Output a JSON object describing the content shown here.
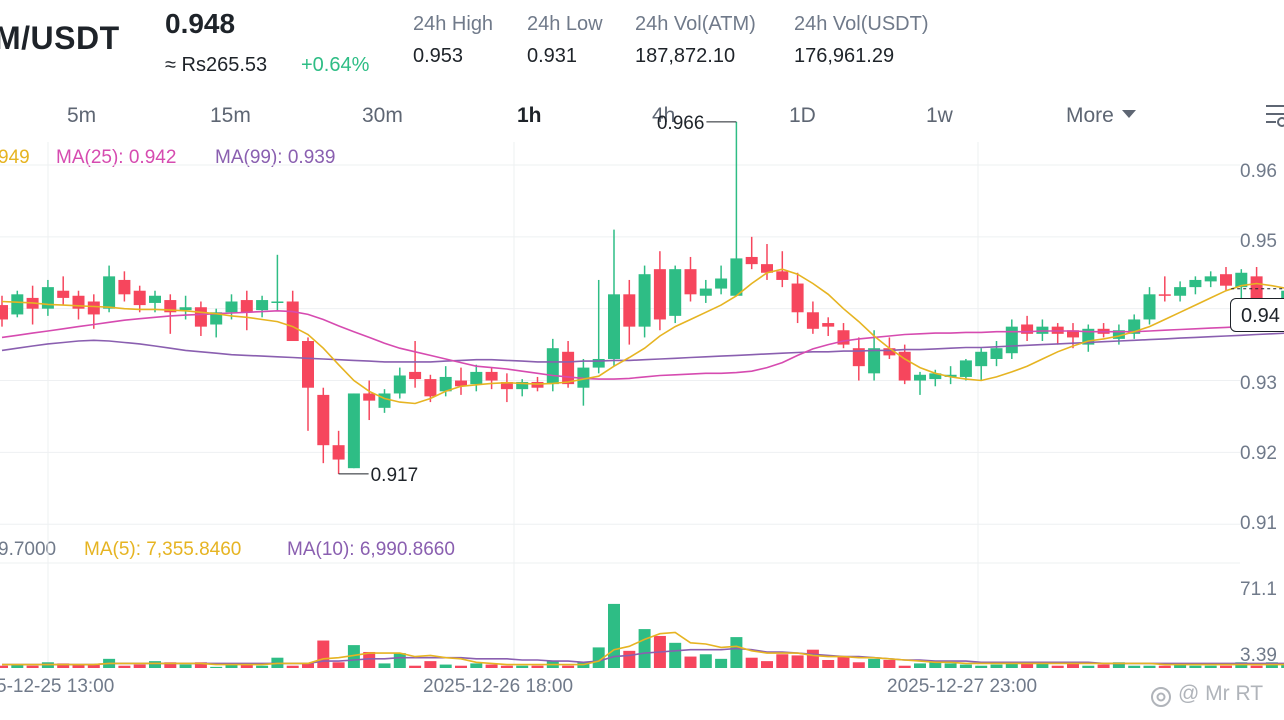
{
  "header": {
    "pair": "M/USDT",
    "last_price": "0.948",
    "fiat_price": "≈ Rs265.53",
    "change_pct": "+0.64%",
    "stats": [
      {
        "label": "24h High",
        "value": "0.953"
      },
      {
        "label": "24h Low",
        "value": "0.931"
      },
      {
        "label": "24h Vol(ATM)",
        "value": "187,872.10"
      },
      {
        "label": "24h Vol(USDT)",
        "value": "176,961.29"
      }
    ]
  },
  "timeframes": [
    "5m",
    "15m",
    "30m",
    "1h",
    "4h",
    "1D",
    "1w"
  ],
  "active_timeframe": "1h",
  "more_label": "More",
  "indicators": {
    "ma7_text": "949",
    "ma25_text": "MA(25): 0.942",
    "ma99_text": "MA(99): 0.939",
    "vol_text": "9.7000",
    "vol_ma5_text": "MA(5): 7,355.8460",
    "vol_ma10_text": "MA(10): 6,990.8660"
  },
  "current_price_tag": "0.94",
  "watermark": "@ Mr RT",
  "colors": {
    "up": "#2ebd85",
    "down": "#f6465d",
    "ma_short": "#e6b422",
    "ma_mid": "#d64bb0",
    "ma_long": "#8a5fb0"
  },
  "chart_data": {
    "type": "candlestick",
    "y_tick_labels": [
      "0.96",
      "0.95",
      "0.94",
      "0.93",
      "0.92",
      "0.91"
    ],
    "y_ticks": [
      0.96,
      0.95,
      0.94,
      0.93,
      0.92,
      0.91
    ],
    "ylim": [
      0.9085,
      0.9632
    ],
    "high_annotation": "0.966",
    "low_annotation": "0.917",
    "x_tick_labels": [
      "5-12-25 13:00",
      "2025-12-26 18:00",
      "2025-12-27 23:00"
    ],
    "volume_tick_labels": [
      "71.1",
      "3.39"
    ],
    "volume_ticks": [
      71.1,
      3.39
    ],
    "volume_ylim": [
      0,
      90
    ],
    "grid": true,
    "candles": [
      {
        "o": 0.9405,
        "h": 0.9418,
        "l": 0.9375,
        "c": 0.9385
      },
      {
        "o": 0.9392,
        "h": 0.9425,
        "l": 0.9388,
        "c": 0.942
      },
      {
        "o": 0.9415,
        "h": 0.9432,
        "l": 0.9378,
        "c": 0.94
      },
      {
        "o": 0.94,
        "h": 0.944,
        "l": 0.939,
        "c": 0.943
      },
      {
        "o": 0.9425,
        "h": 0.9445,
        "l": 0.9405,
        "c": 0.9415
      },
      {
        "o": 0.9418,
        "h": 0.9425,
        "l": 0.9385,
        "c": 0.94
      },
      {
        "o": 0.941,
        "h": 0.942,
        "l": 0.9372,
        "c": 0.9392
      },
      {
        "o": 0.94,
        "h": 0.946,
        "l": 0.9395,
        "c": 0.9445
      },
      {
        "o": 0.944,
        "h": 0.9452,
        "l": 0.941,
        "c": 0.942
      },
      {
        "o": 0.9425,
        "h": 0.9432,
        "l": 0.9395,
        "c": 0.9405
      },
      {
        "o": 0.9408,
        "h": 0.9425,
        "l": 0.9395,
        "c": 0.9418
      },
      {
        "o": 0.9412,
        "h": 0.942,
        "l": 0.9365,
        "c": 0.9395
      },
      {
        "o": 0.9398,
        "h": 0.9418,
        "l": 0.9385,
        "c": 0.9402
      },
      {
        "o": 0.9402,
        "h": 0.941,
        "l": 0.9362,
        "c": 0.9375
      },
      {
        "o": 0.9378,
        "h": 0.94,
        "l": 0.936,
        "c": 0.9395
      },
      {
        "o": 0.9395,
        "h": 0.942,
        "l": 0.9385,
        "c": 0.941
      },
      {
        "o": 0.9412,
        "h": 0.9425,
        "l": 0.937,
        "c": 0.9395
      },
      {
        "o": 0.9398,
        "h": 0.9418,
        "l": 0.9388,
        "c": 0.9412
      },
      {
        "o": 0.9408,
        "h": 0.9475,
        "l": 0.9398,
        "c": 0.941
      },
      {
        "o": 0.941,
        "h": 0.9425,
        "l": 0.9355,
        "c": 0.9355
      },
      {
        "o": 0.9355,
        "h": 0.936,
        "l": 0.923,
        "c": 0.929
      },
      {
        "o": 0.928,
        "h": 0.929,
        "l": 0.9185,
        "c": 0.921
      },
      {
        "o": 0.921,
        "h": 0.923,
        "l": 0.917,
        "c": 0.919
      },
      {
        "o": 0.9178,
        "h": 0.9282,
        "l": 0.9178,
        "c": 0.9282
      },
      {
        "o": 0.9282,
        "h": 0.93,
        "l": 0.9245,
        "c": 0.9272
      },
      {
        "o": 0.9262,
        "h": 0.9288,
        "l": 0.9255,
        "c": 0.9282
      },
      {
        "o": 0.9282,
        "h": 0.9318,
        "l": 0.9275,
        "c": 0.9307
      },
      {
        "o": 0.9312,
        "h": 0.9355,
        "l": 0.929,
        "c": 0.9302
      },
      {
        "o": 0.9302,
        "h": 0.9308,
        "l": 0.927,
        "c": 0.9278
      },
      {
        "o": 0.9285,
        "h": 0.932,
        "l": 0.9278,
        "c": 0.9305
      },
      {
        "o": 0.93,
        "h": 0.9318,
        "l": 0.928,
        "c": 0.9292
      },
      {
        "o": 0.9295,
        "h": 0.9322,
        "l": 0.9285,
        "c": 0.9312
      },
      {
        "o": 0.9312,
        "h": 0.9318,
        "l": 0.9288,
        "c": 0.93
      },
      {
        "o": 0.9298,
        "h": 0.931,
        "l": 0.927,
        "c": 0.9288
      },
      {
        "o": 0.9288,
        "h": 0.9302,
        "l": 0.9278,
        "c": 0.9298
      },
      {
        "o": 0.9298,
        "h": 0.9305,
        "l": 0.9285,
        "c": 0.929
      },
      {
        "o": 0.9295,
        "h": 0.9358,
        "l": 0.9285,
        "c": 0.9345
      },
      {
        "o": 0.934,
        "h": 0.9355,
        "l": 0.929,
        "c": 0.9295
      },
      {
        "o": 0.929,
        "h": 0.933,
        "l": 0.9265,
        "c": 0.9318
      },
      {
        "o": 0.9318,
        "h": 0.944,
        "l": 0.931,
        "c": 0.933
      },
      {
        "o": 0.933,
        "h": 0.951,
        "l": 0.932,
        "c": 0.942
      },
      {
        "o": 0.942,
        "h": 0.944,
        "l": 0.935,
        "c": 0.9375
      },
      {
        "o": 0.9375,
        "h": 0.946,
        "l": 0.936,
        "c": 0.9448
      },
      {
        "o": 0.9455,
        "h": 0.948,
        "l": 0.937,
        "c": 0.9385
      },
      {
        "o": 0.939,
        "h": 0.946,
        "l": 0.938,
        "c": 0.9455
      },
      {
        "o": 0.9455,
        "h": 0.9472,
        "l": 0.941,
        "c": 0.942
      },
      {
        "o": 0.9418,
        "h": 0.944,
        "l": 0.9408,
        "c": 0.9428
      },
      {
        "o": 0.9428,
        "h": 0.946,
        "l": 0.942,
        "c": 0.9442
      },
      {
        "o": 0.9418,
        "h": 0.966,
        "l": 0.9418,
        "c": 0.947
      },
      {
        "o": 0.9472,
        "h": 0.95,
        "l": 0.9455,
        "c": 0.9462
      },
      {
        "o": 0.9462,
        "h": 0.949,
        "l": 0.944,
        "c": 0.945
      },
      {
        "o": 0.9452,
        "h": 0.948,
        "l": 0.943,
        "c": 0.944
      },
      {
        "o": 0.9435,
        "h": 0.945,
        "l": 0.938,
        "c": 0.9395
      },
      {
        "o": 0.9395,
        "h": 0.941,
        "l": 0.9365,
        "c": 0.9372
      },
      {
        "o": 0.938,
        "h": 0.9388,
        "l": 0.9362,
        "c": 0.9375
      },
      {
        "o": 0.937,
        "h": 0.938,
        "l": 0.9345,
        "c": 0.935
      },
      {
        "o": 0.9345,
        "h": 0.936,
        "l": 0.93,
        "c": 0.932
      },
      {
        "o": 0.931,
        "h": 0.937,
        "l": 0.93,
        "c": 0.9345
      },
      {
        "o": 0.9345,
        "h": 0.936,
        "l": 0.933,
        "c": 0.9335
      },
      {
        "o": 0.934,
        "h": 0.935,
        "l": 0.9295,
        "c": 0.93
      },
      {
        "o": 0.93,
        "h": 0.9312,
        "l": 0.928,
        "c": 0.9308
      },
      {
        "o": 0.9302,
        "h": 0.9315,
        "l": 0.9292,
        "c": 0.931
      },
      {
        "o": 0.9305,
        "h": 0.932,
        "l": 0.9295,
        "c": 0.9308
      },
      {
        "o": 0.9305,
        "h": 0.933,
        "l": 0.93,
        "c": 0.9328
      },
      {
        "o": 0.932,
        "h": 0.9345,
        "l": 0.93,
        "c": 0.934
      },
      {
        "o": 0.933,
        "h": 0.9355,
        "l": 0.932,
        "c": 0.9345
      },
      {
        "o": 0.9338,
        "h": 0.9385,
        "l": 0.933,
        "c": 0.9375
      },
      {
        "o": 0.9378,
        "h": 0.939,
        "l": 0.9355,
        "c": 0.9365
      },
      {
        "o": 0.9365,
        "h": 0.9385,
        "l": 0.9355,
        "c": 0.9375
      },
      {
        "o": 0.9375,
        "h": 0.938,
        "l": 0.935,
        "c": 0.9365
      },
      {
        "o": 0.937,
        "h": 0.938,
        "l": 0.9345,
        "c": 0.936
      },
      {
        "o": 0.935,
        "h": 0.9378,
        "l": 0.934,
        "c": 0.9372
      },
      {
        "o": 0.9372,
        "h": 0.938,
        "l": 0.936,
        "c": 0.9365
      },
      {
        "o": 0.9358,
        "h": 0.9378,
        "l": 0.935,
        "c": 0.937
      },
      {
        "o": 0.9365,
        "h": 0.9392,
        "l": 0.9358,
        "c": 0.9385
      },
      {
        "o": 0.9385,
        "h": 0.943,
        "l": 0.9378,
        "c": 0.942
      },
      {
        "o": 0.942,
        "h": 0.9445,
        "l": 0.941,
        "c": 0.9418
      },
      {
        "o": 0.9418,
        "h": 0.9438,
        "l": 0.941,
        "c": 0.943
      },
      {
        "o": 0.943,
        "h": 0.9445,
        "l": 0.942,
        "c": 0.944
      },
      {
        "o": 0.9438,
        "h": 0.9452,
        "l": 0.943,
        "c": 0.9445
      },
      {
        "o": 0.9448,
        "h": 0.9458,
        "l": 0.9425,
        "c": 0.9432
      },
      {
        "o": 0.943,
        "h": 0.9455,
        "l": 0.94,
        "c": 0.945
      },
      {
        "o": 0.9445,
        "h": 0.9458,
        "l": 0.9395,
        "c": 0.94
      },
      {
        "o": 0.9402,
        "h": 0.9412,
        "l": 0.9395,
        "c": 0.9408
      },
      {
        "o": 0.941,
        "h": 0.943,
        "l": 0.94,
        "c": 0.9425
      }
    ],
    "ma_short": [
      0.941,
      0.9409,
      0.9408,
      0.9406,
      0.9405,
      0.9404,
      0.9403,
      0.9402,
      0.94,
      0.9399,
      0.9399,
      0.9398,
      0.9397,
      0.9395,
      0.9393,
      0.939,
      0.9388,
      0.9385,
      0.9382,
      0.9375,
      0.9364,
      0.9345,
      0.9322,
      0.93,
      0.9285,
      0.9275,
      0.927,
      0.9268,
      0.9275,
      0.9285,
      0.9292,
      0.9294,
      0.9296,
      0.9297,
      0.9296,
      0.9295,
      0.9296,
      0.9298,
      0.9302,
      0.9306,
      0.932,
      0.9332,
      0.9345,
      0.9362,
      0.9375,
      0.9385,
      0.9395,
      0.9405,
      0.9418,
      0.9435,
      0.945,
      0.9455,
      0.9448,
      0.9435,
      0.942,
      0.94,
      0.9382,
      0.9362,
      0.9345,
      0.933,
      0.9318,
      0.931,
      0.9305,
      0.9302,
      0.93,
      0.9305,
      0.9312,
      0.932,
      0.933,
      0.934,
      0.9348,
      0.9355,
      0.9358,
      0.9362,
      0.9368,
      0.9375,
      0.9385,
      0.9395,
      0.9405,
      0.9415,
      0.9425,
      0.9432,
      0.9435,
      0.9432,
      0.9428,
      0.9427
    ],
    "ma_mid": [
      0.936,
      0.9363,
      0.9366,
      0.9369,
      0.9372,
      0.9375,
      0.9378,
      0.9381,
      0.9384,
      0.9386,
      0.9388,
      0.939,
      0.9391,
      0.9392,
      0.9393,
      0.9394,
      0.9395,
      0.9396,
      0.9397,
      0.9396,
      0.9392,
      0.9385,
      0.9376,
      0.9368,
      0.936,
      0.9352,
      0.9345,
      0.934,
      0.9335,
      0.933,
      0.9325,
      0.932,
      0.9318,
      0.9316,
      0.9313,
      0.931,
      0.9307,
      0.9305,
      0.9303,
      0.9302,
      0.9302,
      0.9303,
      0.9305,
      0.9307,
      0.9308,
      0.9309,
      0.931,
      0.931,
      0.9311,
      0.9313,
      0.9318,
      0.9325,
      0.9335,
      0.9344,
      0.935,
      0.9355,
      0.9358,
      0.936,
      0.9362,
      0.9364,
      0.9365,
      0.9366,
      0.9366,
      0.9367,
      0.9367,
      0.9368,
      0.9368,
      0.9368,
      0.9369,
      0.9369,
      0.9369,
      0.9368,
      0.9368,
      0.9368,
      0.9368,
      0.9369,
      0.937,
      0.9371,
      0.9372,
      0.9373,
      0.9374,
      0.9375,
      0.9376,
      0.9378,
      0.938,
      0.9383
    ],
    "ma_long": [
      0.9342,
      0.9345,
      0.9348,
      0.9351,
      0.9353,
      0.9355,
      0.9356,
      0.9355,
      0.9353,
      0.9351,
      0.9348,
      0.9345,
      0.9342,
      0.934,
      0.9338,
      0.9336,
      0.9335,
      0.9334,
      0.9333,
      0.9332,
      0.9331,
      0.933,
      0.9329,
      0.9328,
      0.9327,
      0.9326,
      0.9326,
      0.9326,
      0.9326,
      0.9327,
      0.9328,
      0.9329,
      0.9329,
      0.9328,
      0.9327,
      0.9326,
      0.9326,
      0.9326,
      0.9327,
      0.9327,
      0.9328,
      0.9328,
      0.9329,
      0.933,
      0.9331,
      0.9332,
      0.9333,
      0.9334,
      0.9335,
      0.9336,
      0.9337,
      0.9338,
      0.9339,
      0.934,
      0.934,
      0.9341,
      0.9341,
      0.9342,
      0.9342,
      0.9343,
      0.9343,
      0.9344,
      0.9345,
      0.9346,
      0.9346,
      0.9347,
      0.9348,
      0.9349,
      0.935,
      0.9351,
      0.9352,
      0.9353,
      0.9354,
      0.9355,
      0.9356,
      0.9357,
      0.9358,
      0.9359,
      0.936,
      0.9361,
      0.9362,
      0.9363,
      0.9364,
      0.9365,
      0.9366,
      0.9368
    ],
    "volumes": [
      2,
      3,
      2,
      5,
      4,
      3,
      3,
      8,
      2,
      3,
      6,
      5,
      3,
      5,
      1,
      3,
      4,
      2,
      9,
      2,
      4,
      24,
      5,
      20,
      14,
      4,
      13,
      2,
      6,
      3,
      2,
      4,
      3,
      2,
      2,
      2,
      6,
      2,
      5,
      18,
      56,
      15,
      34,
      28,
      22,
      10,
      12,
      8,
      27,
      9,
      6,
      12,
      11,
      16,
      7,
      10,
      5,
      8,
      7,
      2,
      4,
      5,
      4,
      3,
      2,
      3,
      5,
      4,
      4,
      2,
      5,
      2,
      3,
      5,
      2,
      2,
      2,
      4,
      2,
      2,
      2,
      5,
      2,
      5,
      3,
      3
    ],
    "vol_ma_short": [
      3,
      3,
      3,
      3,
      3,
      3,
      3,
      4,
      4,
      4,
      4,
      4,
      4,
      4,
      3,
      3,
      3,
      3,
      4,
      4,
      4,
      8,
      9,
      11,
      13,
      13,
      13,
      10,
      11,
      9,
      8,
      5,
      4,
      3,
      3,
      3,
      3,
      3,
      3,
      6,
      16,
      19,
      25,
      30,
      31,
      22,
      21,
      18,
      19,
      15,
      13,
      13,
      13,
      11,
      10,
      10,
      9,
      9,
      8,
      7,
      6,
      5,
      5,
      4,
      4,
      4,
      4,
      4,
      4,
      4,
      4,
      4,
      4,
      4,
      4,
      4,
      3,
      3,
      3,
      3,
      3,
      3,
      3,
      3,
      3,
      3
    ],
    "vol_ma_long": [
      3,
      3,
      3,
      3,
      3,
      3,
      3,
      4,
      4,
      4,
      4,
      4,
      4,
      4,
      4,
      4,
      4,
      4,
      4,
      4,
      4,
      6,
      6,
      7,
      8,
      8,
      9,
      9,
      9,
      9,
      9,
      8,
      8,
      8,
      7,
      7,
      6,
      6,
      5,
      6,
      10,
      11,
      13,
      14,
      15,
      16,
      16,
      16,
      17,
      16,
      14,
      14,
      13,
      12,
      11,
      10,
      10,
      9,
      8,
      7,
      7,
      6,
      6,
      6,
      5,
      5,
      5,
      5,
      5,
      5,
      5,
      5,
      4,
      4,
      4,
      4,
      4,
      4,
      4,
      4,
      4,
      4,
      4,
      4,
      4,
      4
    ]
  }
}
